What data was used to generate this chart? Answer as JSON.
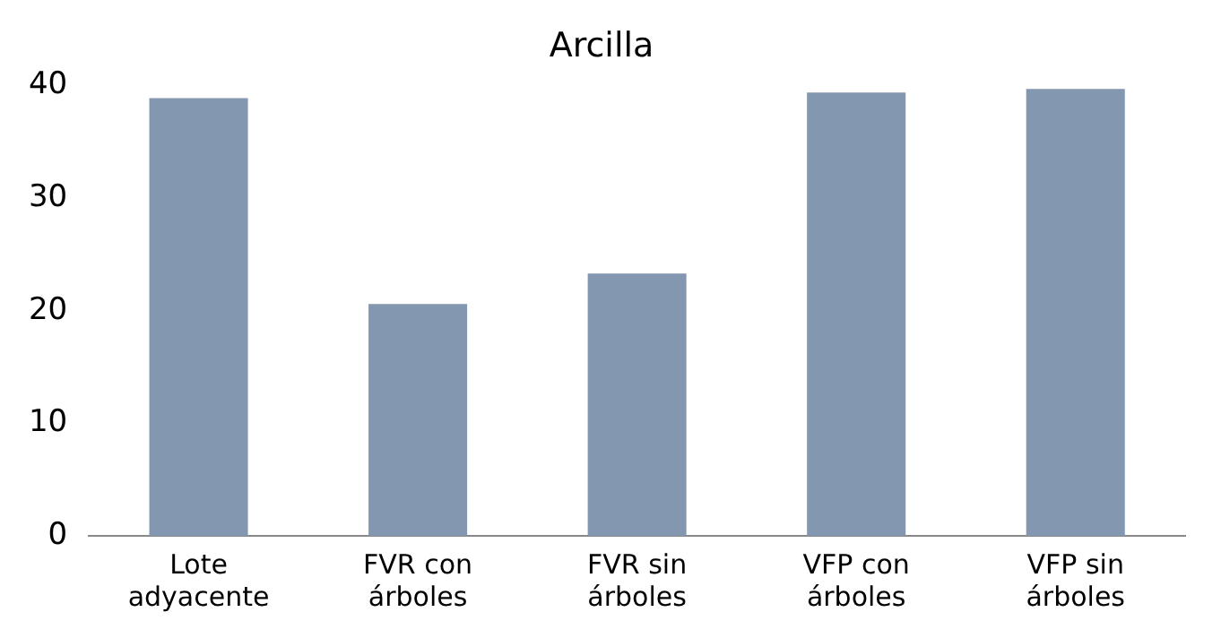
{
  "chart_data": {
    "type": "bar",
    "title": "Arcilla",
    "categories": [
      "Lote adyacente",
      "FVR con árboles",
      "FVR sin árboles",
      "VFP con árboles",
      "VFP sin árboles"
    ],
    "values": [
      38.9,
      20.6,
      23.3,
      39.4,
      39.7
    ],
    "color": "#8497b0",
    "ylim": [
      0,
      40
    ],
    "yticks": [
      0,
      10,
      20,
      30,
      40
    ],
    "grid": false,
    "legend": false
  }
}
